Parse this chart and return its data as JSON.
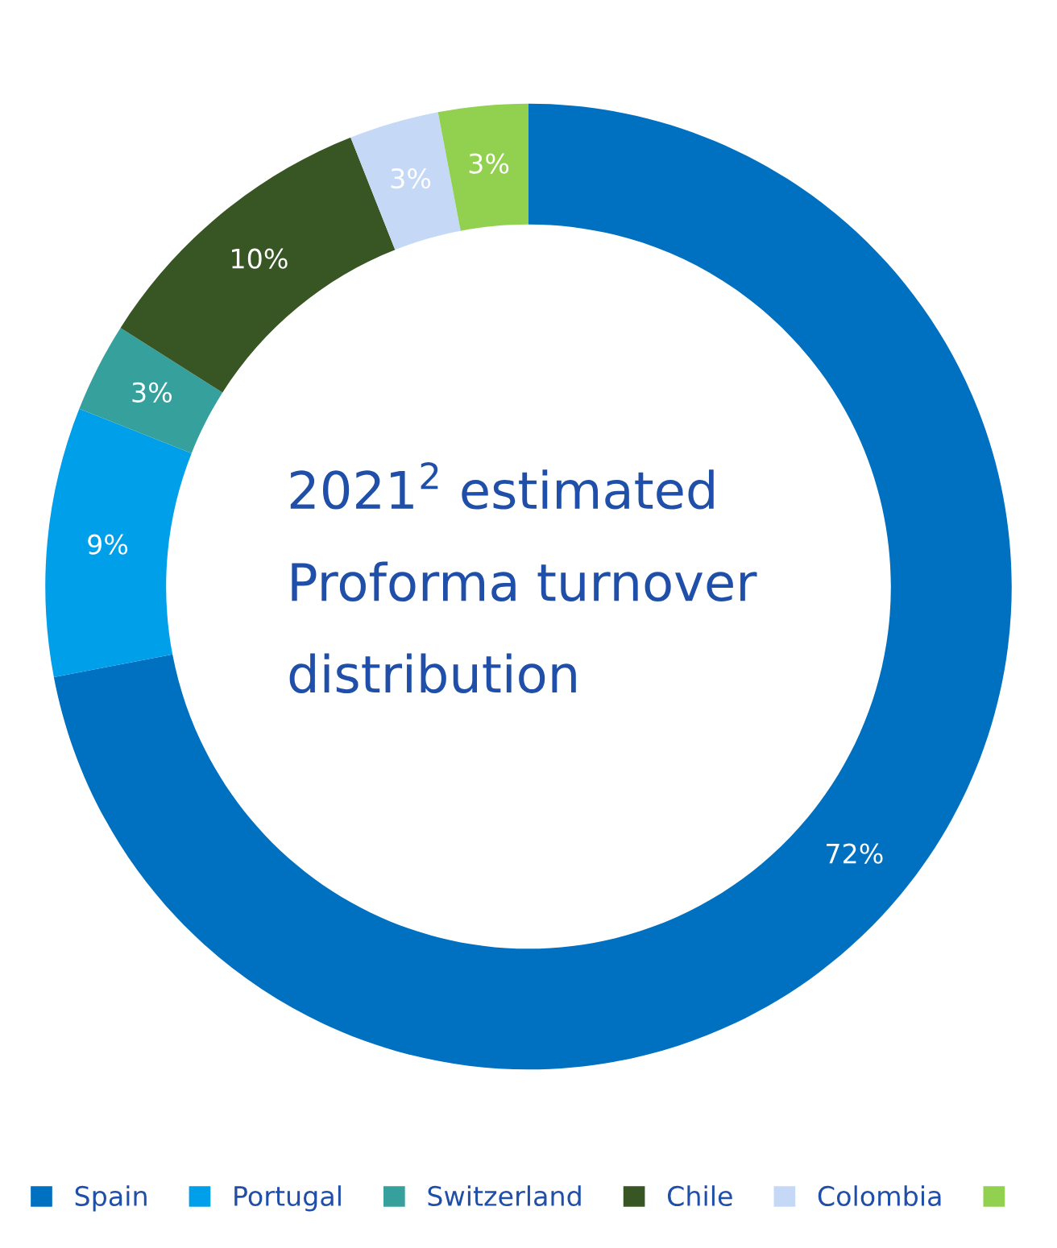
{
  "chart_data": {
    "type": "donut",
    "title": "2021$^{2}$ estimated Proforma turnover distribution",
    "categories": [
      "Spain",
      "Portugal",
      "Switzerland",
      "Chile",
      "Colombia",
      null
    ],
    "values": [
      72,
      9,
      3,
      10,
      3,
      3
    ],
    "value_labels": [
      "72%",
      "9%",
      "3%",
      "10%",
      "3%",
      "3%"
    ],
    "colors": [
      "#0070c0",
      "#009fea",
      "#36a09c",
      "#375623",
      "#c5d9f7",
      "#92d050"
    ],
    "legend": "bottom"
  }
}
